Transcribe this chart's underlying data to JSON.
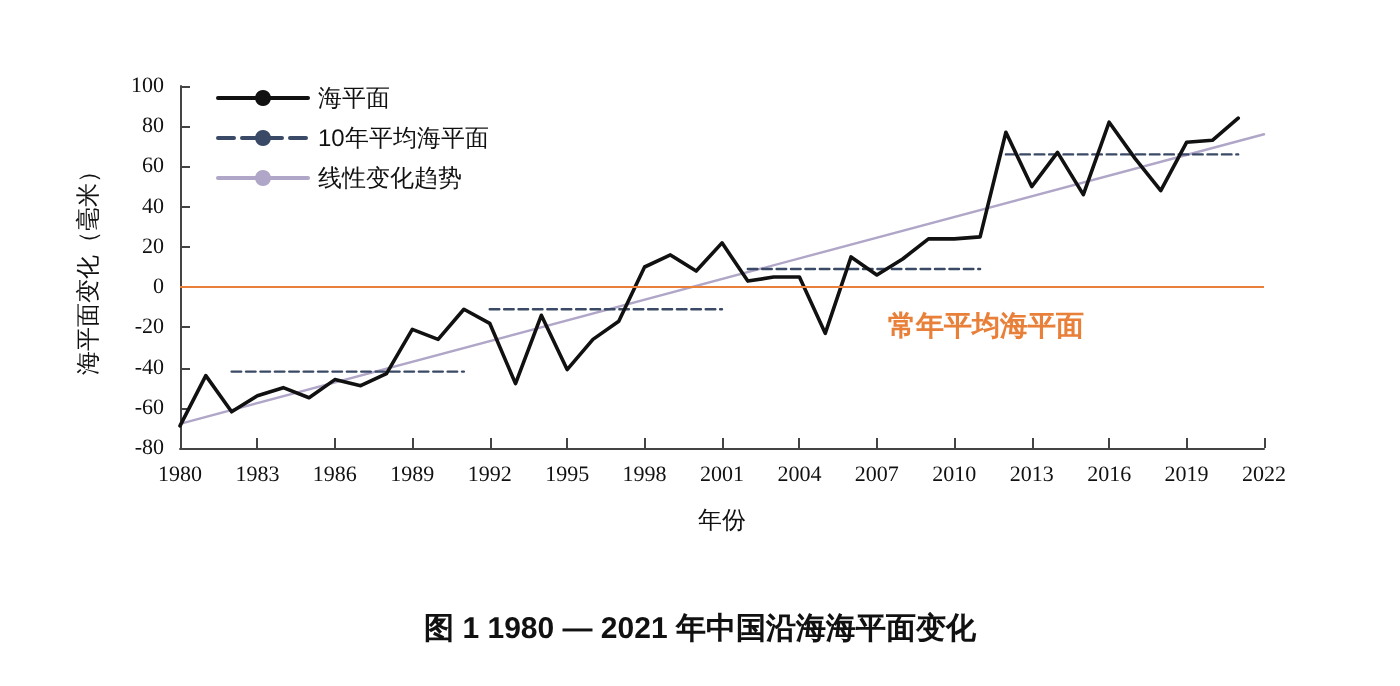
{
  "chart_data": {
    "type": "line",
    "title": "图 1 1980 — 2021 年中国沿海海平面变化",
    "xlabel": "年份",
    "ylabel": "海平面变化（毫米）",
    "x": [
      1980,
      1981,
      1982,
      1983,
      1984,
      1985,
      1986,
      1987,
      1988,
      1989,
      1990,
      1991,
      1992,
      1993,
      1994,
      1995,
      1996,
      1997,
      1998,
      1999,
      2000,
      2001,
      2002,
      2003,
      2004,
      2005,
      2006,
      2007,
      2008,
      2009,
      2010,
      2011,
      2012,
      2013,
      2014,
      2015,
      2016,
      2017,
      2018,
      2019,
      2020,
      2021
    ],
    "series": [
      {
        "name": "海平面",
        "color": "#111111",
        "line_style": "solid",
        "values": [
          -69,
          -44,
          -62,
          -54,
          -50,
          -55,
          -46,
          -49,
          -43,
          -21,
          -26,
          -11,
          -18,
          -48,
          -14,
          -41,
          -26,
          -17,
          10,
          16,
          8,
          22,
          3,
          5,
          5,
          -23,
          15,
          6,
          14,
          24,
          24,
          25,
          77,
          50,
          67,
          46,
          82,
          64,
          48,
          72,
          73,
          84
        ]
      },
      {
        "name": "10年平均海平面",
        "color": "#3a4a66",
        "line_style": "dashed",
        "x": [
          1982,
          1991,
          1991.5,
          1992,
          2001,
          2001.5,
          2002,
          2011,
          2011.5,
          2012,
          2021
        ],
        "values": [
          -42,
          -42,
          null,
          -11,
          -11,
          null,
          9,
          9,
          null,
          66,
          66
        ]
      },
      {
        "name": "线性变化趋势",
        "color": "#b0a6c8",
        "line_style": "solid",
        "x": [
          1980,
          2022
        ],
        "values": [
          -68,
          76
        ]
      }
    ],
    "xlim": [
      1980,
      2022
    ],
    "xticks": [
      1980,
      1983,
      1986,
      1989,
      1992,
      1995,
      1998,
      2001,
      2004,
      2007,
      2010,
      2013,
      2016,
      2019,
      2022
    ],
    "ylim": [
      -80,
      100
    ],
    "yticks": [
      -80,
      -60,
      -40,
      -20,
      0,
      20,
      40,
      60,
      80,
      100
    ],
    "ref_lines": [
      {
        "axis": "y",
        "value": 0,
        "label": "常年平均海平面",
        "color": "#e8803a"
      }
    ],
    "legend": "top left",
    "grid": false,
    "marker": "none"
  }
}
